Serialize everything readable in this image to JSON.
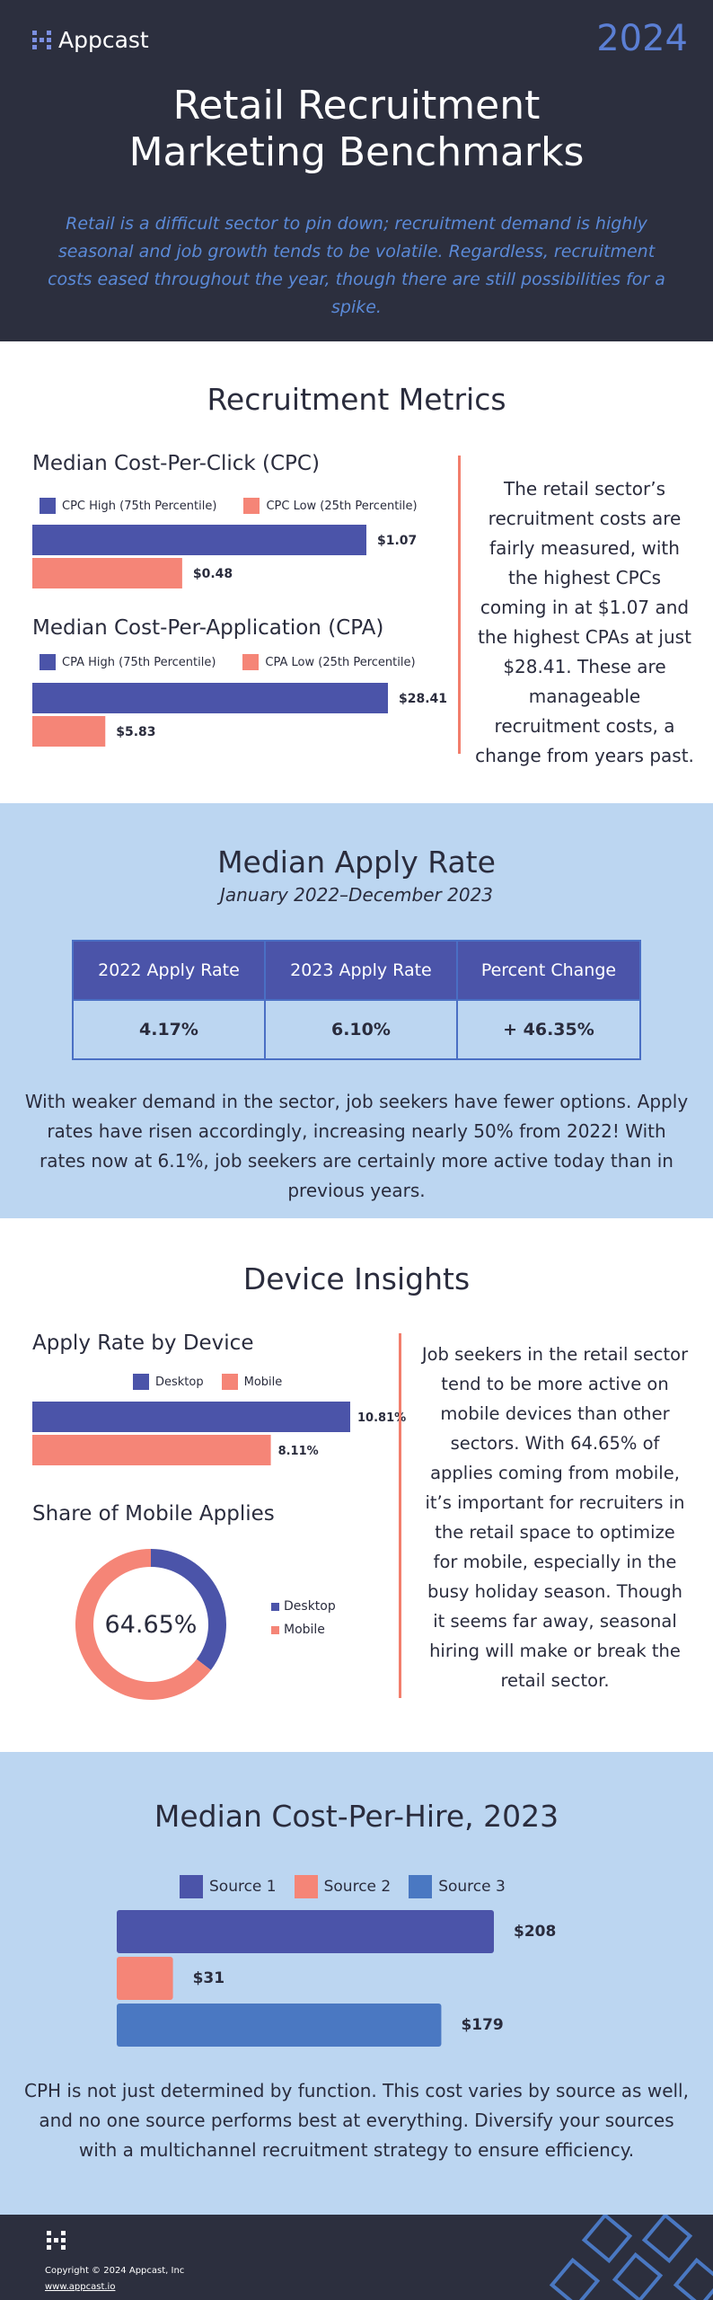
{
  "header": {
    "logo_text": "Appcast",
    "year": "2024",
    "title_line1": "Retail Recruitment",
    "title_line2": "Marketing Benchmarks",
    "subtitle": "Retail is a difficult sector to pin down; recruitment demand is highly seasonal and job growth tends to be volatile. Regardless, recruitment costs eased throughout the year, though there are still possibilities for a spike."
  },
  "metrics": {
    "section_title": "Recruitment Metrics",
    "description": "The retail sector’s recruitment costs are fairly measured, with the highest CPCs coming in at $1.07 and the highest CPAs at just $28.41. These are manageable recruitment costs, a change from years past."
  },
  "apply_rate": {
    "section_title": "Median Apply Rate",
    "subtitle": "January 2022–December 2023",
    "headers": [
      "2022 Apply Rate",
      "2023 Apply Rate",
      "Percent Change"
    ],
    "values": [
      "4.17%",
      "6.10%",
      "+ 46.35%"
    ],
    "description": "With weaker demand in the sector, job seekers have fewer options. Apply rates have risen accordingly, increasing nearly 50% from 2022! With rates now at 6.1%, job seekers are certainly more active today than in previous years."
  },
  "device": {
    "section_title": "Device Insights",
    "description": "Job seekers in the retail sector tend to be more active on mobile devices than other sectors. With 64.65% of applies coming from mobile, it’s important for recruiters in the retail space to optimize for mobile, especially in the busy holiday season. Though it seems far away, seasonal hiring will make or break the retail sector."
  },
  "cph": {
    "section_title": "Median Cost-Per-Hire, 2023",
    "description": "CPH is not just determined by function. This cost varies by source as well, and no one source performs best at everything. Diversify your sources with a multichannel recruitment strategy to ensure efficiency."
  },
  "footer": {
    "copyright": "Copyright © 2024 Appcast, Inc",
    "link": "www.appcast.io"
  },
  "colors": {
    "navy": "#2c2f3e",
    "indigo": "#4b54a9",
    "salmon": "#f58577",
    "blue": "#4a78c2",
    "light_blue": "#bcd6f1"
  },
  "chart_data": [
    {
      "type": "bar",
      "orientation": "horizontal",
      "title": "Median Cost-Per-Click (CPC)",
      "categories": [
        "CPC High (75th Percentile)",
        "CPC Low (25th Percentile)"
      ],
      "values": [
        1.07,
        0.48
      ],
      "labels": [
        "$1.07",
        "$0.48"
      ],
      "legend": "top-left",
      "xlim": [
        0,
        1.07
      ]
    },
    {
      "type": "bar",
      "orientation": "horizontal",
      "title": "Median Cost-Per-Application (CPA)",
      "categories": [
        "CPA High (75th Percentile)",
        "CPA Low (25th Percentile)"
      ],
      "values": [
        28.41,
        5.83
      ],
      "labels": [
        "$28.41",
        "$5.83"
      ],
      "legend": "top-left",
      "xlim": [
        0,
        28.41
      ]
    },
    {
      "type": "bar",
      "orientation": "horizontal",
      "title": "Apply Rate by Device",
      "categories": [
        "Desktop",
        "Mobile"
      ],
      "values": [
        10.81,
        8.11
      ],
      "labels": [
        "10.81%",
        "8.11%"
      ],
      "legend": "top-center",
      "xlim": [
        0,
        10.81
      ]
    },
    {
      "type": "pie",
      "style": "donut",
      "title": "Share of Mobile Applies",
      "categories": [
        "Desktop",
        "Mobile"
      ],
      "values": [
        35.35,
        64.65
      ],
      "center_label": "64.65%",
      "legend": "right"
    },
    {
      "type": "bar",
      "orientation": "horizontal",
      "title": "",
      "categories": [
        "Source 1",
        "Source 2",
        "Source 3"
      ],
      "values": [
        208,
        31,
        179
      ],
      "labels": [
        "$208",
        "$31",
        "$179"
      ],
      "legend": "top-center",
      "xlim": [
        0,
        208
      ]
    }
  ]
}
